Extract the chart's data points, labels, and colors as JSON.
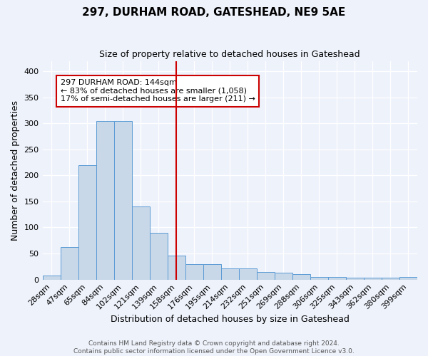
{
  "title": "297, DURHAM ROAD, GATESHEAD, NE9 5AE",
  "subtitle": "Size of property relative to detached houses in Gateshead",
  "xlabel": "Distribution of detached houses by size in Gateshead",
  "ylabel": "Number of detached properties",
  "categories": [
    "28sqm",
    "47sqm",
    "65sqm",
    "84sqm",
    "102sqm",
    "121sqm",
    "139sqm",
    "158sqm",
    "176sqm",
    "195sqm",
    "214sqm",
    "232sqm",
    "251sqm",
    "269sqm",
    "288sqm",
    "306sqm",
    "325sqm",
    "343sqm",
    "362sqm",
    "380sqm",
    "399sqm"
  ],
  "values": [
    8,
    63,
    220,
    305,
    305,
    140,
    90,
    46,
    30,
    30,
    22,
    22,
    15,
    13,
    11,
    5,
    5,
    4,
    4,
    4,
    5
  ],
  "bar_color": "#c8d8e8",
  "bar_edge_color": "#5b9bd5",
  "ylim": [
    0,
    420
  ],
  "yticks": [
    0,
    50,
    100,
    150,
    200,
    250,
    300,
    350,
    400
  ],
  "vline_x": 7.0,
  "vline_color": "#cc0000",
  "annotation_text": "297 DURHAM ROAD: 144sqm\n← 83% of detached houses are smaller (1,058)\n17% of semi-detached houses are larger (211) →",
  "annotation_box_color": "#ffffff",
  "annotation_box_edge_color": "#cc0000",
  "footer_line1": "Contains HM Land Registry data © Crown copyright and database right 2024.",
  "footer_line2": "Contains public sector information licensed under the Open Government Licence v3.0.",
  "bg_color": "#eef2fb",
  "plot_bg_color": "#eef2fb",
  "title_fontsize": 11,
  "subtitle_fontsize": 9,
  "ylabel_fontsize": 9,
  "xlabel_fontsize": 9,
  "tick_fontsize": 8,
  "ann_fontsize": 8
}
